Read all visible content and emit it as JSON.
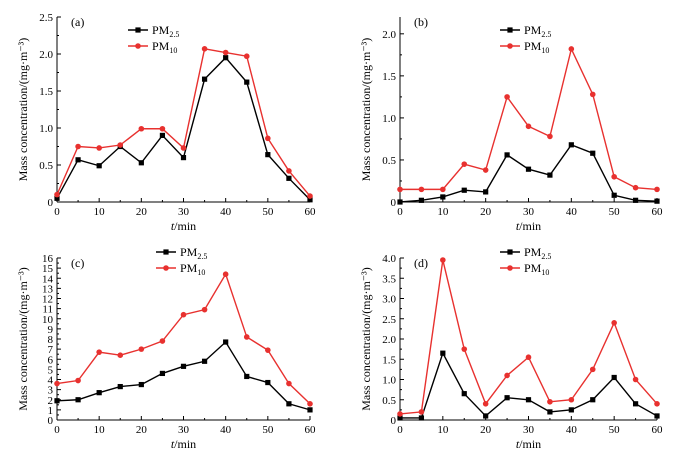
{
  "colors": {
    "pm25": "#000000",
    "pm10": "#e8312f"
  },
  "chart_data": [
    {
      "type": "line",
      "panel": "(a)",
      "xlabel_var": "t",
      "xlabel_unit": "/min",
      "ylabel": "Mass concentration/(mg·m⁻³)",
      "xlim": [
        0,
        60
      ],
      "ylim": [
        0,
        2.5
      ],
      "xticks": [
        0,
        10,
        20,
        30,
        40,
        50,
        60
      ],
      "yticks": [
        0,
        0.5,
        1.0,
        1.5,
        2.0,
        2.5
      ],
      "ytick_labels": [
        "0",
        "0.5",
        "1.0",
        "1.5",
        "2.0",
        "2.5"
      ],
      "x": [
        0,
        5,
        10,
        15,
        20,
        25,
        30,
        35,
        40,
        45,
        50,
        55,
        60
      ],
      "series": [
        {
          "name": "PM2.5",
          "label_main": "PM",
          "label_sub": "2.5",
          "values": [
            0.05,
            0.57,
            0.49,
            0.75,
            0.53,
            0.9,
            0.6,
            1.66,
            1.95,
            1.62,
            0.64,
            0.32,
            0.03
          ]
        },
        {
          "name": "PM10",
          "label_main": "PM",
          "label_sub": "10",
          "values": [
            0.1,
            0.75,
            0.73,
            0.77,
            0.99,
            0.99,
            0.73,
            2.07,
            2.02,
            1.97,
            0.86,
            0.42,
            0.08
          ]
        }
      ]
    },
    {
      "type": "line",
      "panel": "(b)",
      "xlabel_var": "t",
      "xlabel_unit": "/min",
      "ylabel": "Mass concentration/(mg·m⁻³)",
      "xlim": [
        0,
        60
      ],
      "ylim": [
        0,
        2.2
      ],
      "xticks": [
        0,
        10,
        20,
        30,
        40,
        50,
        60
      ],
      "yticks": [
        0,
        0.5,
        1.0,
        1.5,
        2.0
      ],
      "ytick_labels": [
        "0",
        "0.5",
        "1.0",
        "1.5",
        "2.0"
      ],
      "x": [
        0,
        5,
        10,
        15,
        20,
        25,
        30,
        35,
        40,
        45,
        50,
        55,
        60
      ],
      "series": [
        {
          "name": "PM2.5",
          "label_main": "PM",
          "label_sub": "2.5",
          "values": [
            0.0,
            0.02,
            0.06,
            0.14,
            0.12,
            0.56,
            0.39,
            0.32,
            0.68,
            0.58,
            0.08,
            0.02,
            0.01
          ]
        },
        {
          "name": "PM10",
          "label_main": "PM",
          "label_sub": "10",
          "values": [
            0.15,
            0.15,
            0.15,
            0.45,
            0.38,
            1.25,
            0.9,
            0.78,
            1.82,
            1.28,
            0.3,
            0.17,
            0.15
          ]
        }
      ]
    },
    {
      "type": "line",
      "panel": "(c)",
      "xlabel_var": "t",
      "xlabel_unit": "/min",
      "ylabel": "Mass concentration/(mg·m⁻³)",
      "xlim": [
        0,
        60
      ],
      "ylim": [
        0,
        16
      ],
      "xticks": [
        0,
        10,
        20,
        30,
        40,
        50,
        60
      ],
      "yticks": [
        0,
        1,
        2,
        3,
        4,
        5,
        6,
        7,
        8,
        9,
        10,
        11,
        12,
        13,
        14,
        15,
        16
      ],
      "ytick_labels": [
        "0",
        "1",
        "2",
        "3",
        "4",
        "5",
        "6",
        "7",
        "8",
        "9",
        "10",
        "11",
        "12",
        "13",
        "14",
        "15",
        "16"
      ],
      "x": [
        0,
        5,
        10,
        15,
        20,
        25,
        30,
        35,
        40,
        45,
        50,
        55,
        60
      ],
      "series": [
        {
          "name": "PM2.5",
          "label_main": "PM",
          "label_sub": "2.5",
          "values": [
            1.9,
            2.0,
            2.7,
            3.3,
            3.5,
            4.6,
            5.3,
            5.8,
            7.7,
            4.3,
            3.7,
            1.6,
            1.0
          ]
        },
        {
          "name": "PM10",
          "label_main": "PM",
          "label_sub": "10",
          "values": [
            3.6,
            3.9,
            6.7,
            6.4,
            7.0,
            7.8,
            10.4,
            10.9,
            14.4,
            8.2,
            6.9,
            3.6,
            1.6
          ]
        }
      ]
    },
    {
      "type": "line",
      "panel": "(d)",
      "xlabel_var": "t",
      "xlabel_unit": "/min",
      "ylabel": "Mass concentration/(mg·m⁻³)",
      "xlim": [
        0,
        60
      ],
      "ylim": [
        0,
        4.0
      ],
      "xticks": [
        0,
        10,
        20,
        30,
        40,
        50,
        60
      ],
      "yticks": [
        0,
        0.5,
        1.0,
        1.5,
        2.0,
        2.5,
        3.0,
        3.5,
        4.0
      ],
      "ytick_labels": [
        "0",
        "0.5",
        "1.0",
        "1.5",
        "2.0",
        "2.5",
        "3.0",
        "3.5",
        "4.0"
      ],
      "x": [
        0,
        5,
        10,
        15,
        20,
        25,
        30,
        35,
        40,
        45,
        50,
        55,
        60
      ],
      "series": [
        {
          "name": "PM2.5",
          "label_main": "PM",
          "label_sub": "2.5",
          "values": [
            0.05,
            0.05,
            1.65,
            0.65,
            0.1,
            0.55,
            0.5,
            0.2,
            0.25,
            0.5,
            1.05,
            0.4,
            0.1
          ]
        },
        {
          "name": "PM10",
          "label_main": "PM",
          "label_sub": "10",
          "values": [
            0.15,
            0.2,
            3.95,
            1.75,
            0.4,
            1.1,
            1.55,
            0.45,
            0.5,
            1.25,
            2.4,
            1.0,
            0.4
          ]
        }
      ]
    }
  ]
}
